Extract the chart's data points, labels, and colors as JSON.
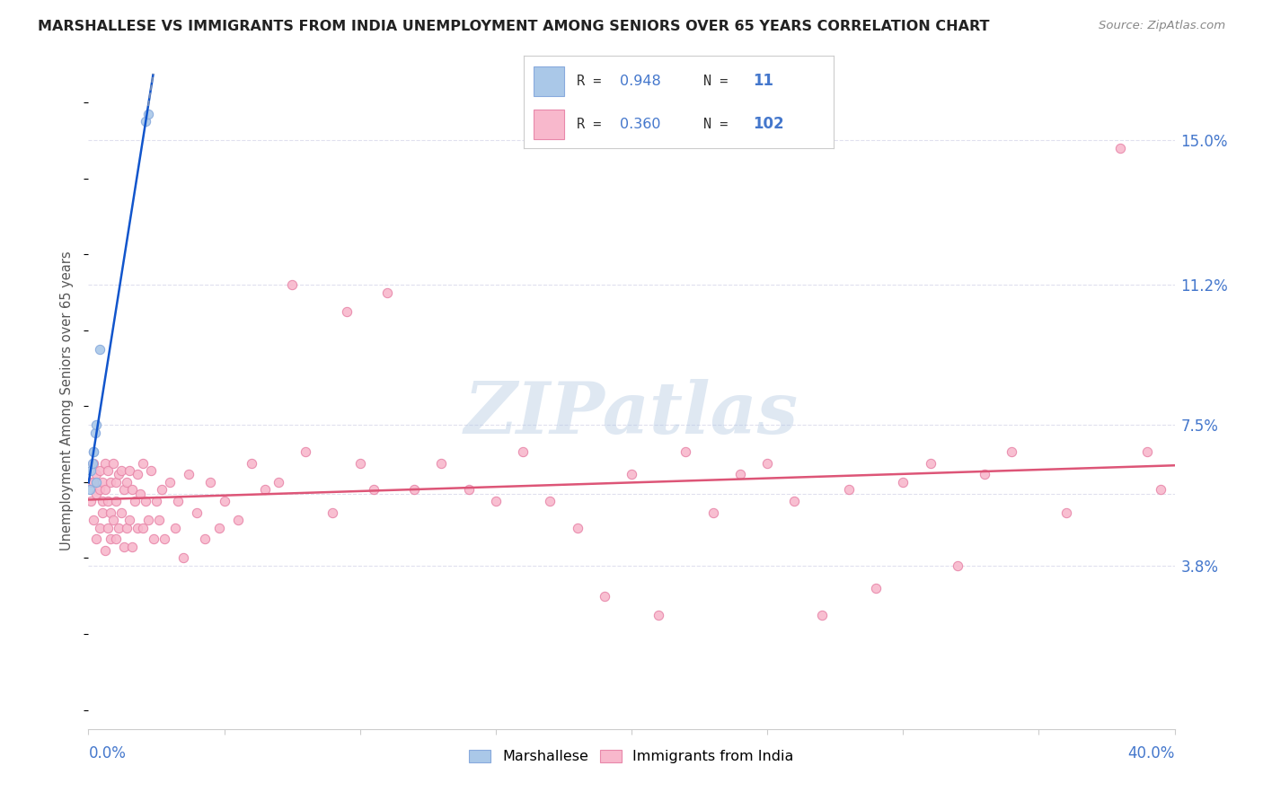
{
  "title": "MARSHALLESE VS IMMIGRANTS FROM INDIA UNEMPLOYMENT AMONG SENIORS OVER 65 YEARS CORRELATION CHART",
  "source": "Source: ZipAtlas.com",
  "ylabel": "Unemployment Among Seniors over 65 years",
  "watermark": "ZIPatlas",
  "xlim": [
    0.0,
    0.4
  ],
  "ylim": [
    -0.005,
    0.168
  ],
  "yticks": [
    0.038,
    0.075,
    0.112,
    0.15
  ],
  "ytick_labels": [
    "3.8%",
    "7.5%",
    "11.2%",
    "15.0%"
  ],
  "xtick_labels": [
    "0.0%",
    "40.0%"
  ],
  "marshallese_x": [
    0.0005,
    0.001,
    0.0015,
    0.002,
    0.002,
    0.0025,
    0.003,
    0.003,
    0.004,
    0.021,
    0.022
  ],
  "marshallese_y": [
    0.058,
    0.063,
    0.065,
    0.068,
    0.068,
    0.073,
    0.075,
    0.06,
    0.095,
    0.155,
    0.157
  ],
  "india_x": [
    0.001,
    0.001,
    0.002,
    0.002,
    0.002,
    0.003,
    0.003,
    0.003,
    0.004,
    0.004,
    0.004,
    0.005,
    0.005,
    0.005,
    0.006,
    0.006,
    0.006,
    0.007,
    0.007,
    0.007,
    0.008,
    0.008,
    0.008,
    0.009,
    0.009,
    0.01,
    0.01,
    0.01,
    0.011,
    0.011,
    0.012,
    0.012,
    0.013,
    0.013,
    0.014,
    0.014,
    0.015,
    0.015,
    0.016,
    0.016,
    0.017,
    0.018,
    0.018,
    0.019,
    0.02,
    0.02,
    0.021,
    0.022,
    0.023,
    0.024,
    0.025,
    0.026,
    0.027,
    0.028,
    0.03,
    0.032,
    0.033,
    0.035,
    0.037,
    0.04,
    0.043,
    0.045,
    0.048,
    0.05,
    0.055,
    0.06,
    0.065,
    0.07,
    0.075,
    0.08,
    0.09,
    0.095,
    0.1,
    0.105,
    0.11,
    0.12,
    0.13,
    0.14,
    0.15,
    0.16,
    0.17,
    0.18,
    0.19,
    0.2,
    0.21,
    0.22,
    0.23,
    0.24,
    0.25,
    0.26,
    0.27,
    0.28,
    0.29,
    0.3,
    0.31,
    0.32,
    0.33,
    0.34,
    0.36,
    0.38,
    0.39,
    0.395
  ],
  "india_y": [
    0.06,
    0.055,
    0.065,
    0.06,
    0.05,
    0.062,
    0.057,
    0.045,
    0.063,
    0.058,
    0.048,
    0.06,
    0.055,
    0.052,
    0.065,
    0.058,
    0.042,
    0.063,
    0.055,
    0.048,
    0.06,
    0.052,
    0.045,
    0.065,
    0.05,
    0.06,
    0.055,
    0.045,
    0.062,
    0.048,
    0.063,
    0.052,
    0.058,
    0.043,
    0.06,
    0.048,
    0.063,
    0.05,
    0.058,
    0.043,
    0.055,
    0.062,
    0.048,
    0.057,
    0.065,
    0.048,
    0.055,
    0.05,
    0.063,
    0.045,
    0.055,
    0.05,
    0.058,
    0.045,
    0.06,
    0.048,
    0.055,
    0.04,
    0.062,
    0.052,
    0.045,
    0.06,
    0.048,
    0.055,
    0.05,
    0.065,
    0.058,
    0.06,
    0.112,
    0.068,
    0.052,
    0.105,
    0.065,
    0.058,
    0.11,
    0.058,
    0.065,
    0.058,
    0.055,
    0.068,
    0.055,
    0.048,
    0.03,
    0.062,
    0.025,
    0.068,
    0.052,
    0.062,
    0.065,
    0.055,
    0.025,
    0.058,
    0.032,
    0.06,
    0.065,
    0.038,
    0.062,
    0.068,
    0.052,
    0.148,
    0.068,
    0.058
  ],
  "bg_color": "#ffffff",
  "scatter_size": 55,
  "marshallese_color": "#aac8e8",
  "india_color": "#f8b8cc",
  "marshallese_edge": "#88aadd",
  "india_edge": "#e888aa",
  "trend_blue": "#1155cc",
  "trend_pink": "#dd5577",
  "title_color": "#222222",
  "axis_label_color": "#4477cc",
  "grid_color": "#e0e0ee",
  "legend_text_color": "#333333",
  "source_color": "#888888"
}
